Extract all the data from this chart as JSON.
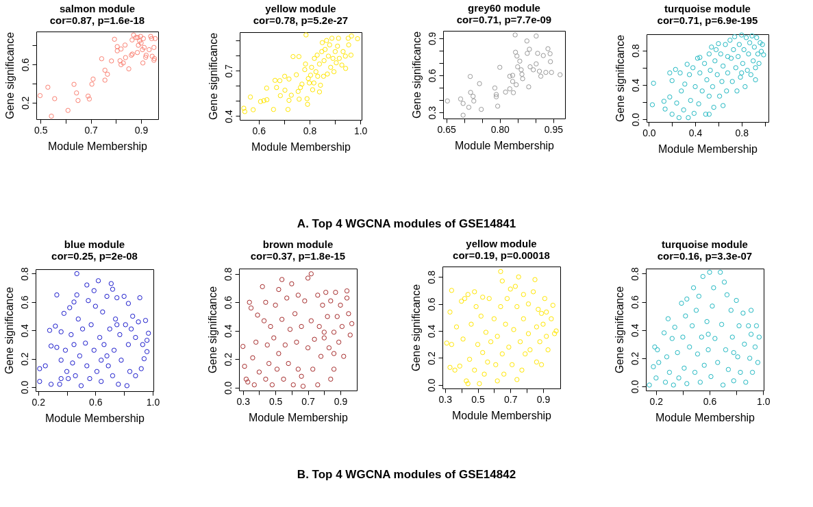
{
  "chart_data": [
    {
      "type": "scatter",
      "title": "salmon module",
      "subtitle": "cor=0.87, p=1.6e-18",
      "xlabel": "Module Membership",
      "ylabel": "Gene significance",
      "color": "#fa8072",
      "marker": "circle",
      "xlim": [
        0.483,
        0.968
      ],
      "ylim": [
        0.027,
        0.945
      ],
      "xticks": [
        0.5,
        {
          "value": 0.6,
          "label": null
        },
        0.7,
        {
          "value": 0.8,
          "label": null
        },
        0.9
      ],
      "yticks": [
        0.2,
        {
          "value": 0.4,
          "label": null
        },
        0.6,
        {
          "value": 0.8,
          "label": null
        }
      ],
      "x": [
        0.498,
        0.529,
        0.556,
        0.543,
        0.609,
        0.633,
        0.643,
        0.649,
        0.689,
        0.694,
        0.704,
        0.709,
        0.743,
        0.756,
        0.756,
        0.766,
        0.782,
        0.794,
        0.805,
        0.805,
        0.816,
        0.82,
        0.82,
        0.829,
        0.836,
        0.838,
        0.851,
        0.861,
        0.865,
        0.864,
        0.87,
        0.88,
        0.885,
        0.889,
        0.887,
        0.894,
        0.898,
        0.9,
        0.905,
        0.907,
        0.909,
        0.912,
        0.92,
        0.918,
        0.932,
        0.938,
        0.942,
        0.944,
        0.951,
        0.951,
        0.956,
        0.953
      ],
      "values": [
        0.274,
        0.362,
        0.242,
        0.059,
        0.119,
        0.392,
        0.302,
        0.223,
        0.269,
        0.239,
        0.394,
        0.447,
        0.66,
        0.54,
        0.436,
        0.498,
        0.637,
        0.864,
        0.787,
        0.743,
        0.639,
        0.762,
        0.598,
        0.616,
        0.803,
        0.672,
        0.554,
        0.697,
        0.709,
        0.857,
        0.908,
        0.882,
        0.725,
        0.801,
        0.882,
        0.847,
        0.894,
        0.824,
        0.755,
        0.616,
        0.871,
        0.778,
        0.697,
        0.676,
        0.755,
        0.894,
        0.871,
        0.686,
        0.778,
        0.644,
        0.871,
        0.662
      ]
    },
    {
      "type": "scatter",
      "title": "yellow module",
      "subtitle": "cor=0.78, p=5.2e-27",
      "xlabel": "Module Membership",
      "ylabel": "Gene significance",
      "color": "#ffe600",
      "marker": "circle",
      "xlim": [
        0.525,
        1.005
      ],
      "ylim": [
        0.375,
        0.954
      ],
      "xticks": [
        0.6,
        {
          "value": 0.7,
          "label": null
        },
        0.8,
        {
          "value": 0.9,
          "label": null
        },
        {
          "value": 1,
          "label": "1.0"
        }
      ],
      "yticks": [
        0.4,
        {
          "value": 0.5,
          "label": null
        },
        {
          "value": 0.6,
          "label": null
        },
        0.7,
        {
          "value": 0.8,
          "label": null
        },
        {
          "value": 0.9,
          "label": null
        }
      ],
      "x": [
        0.541,
        0.545,
        0.567,
        0.578,
        0.607,
        0.62,
        0.632,
        0.631,
        0.658,
        0.664,
        0.67,
        0.683,
        0.685,
        0.703,
        0.702,
        0.719,
        0.715,
        0.719,
        0.728,
        0.735,
        0.758,
        0.748,
        0.755,
        0.759,
        0.764,
        0.77,
        0.781,
        0.784,
        0.786,
        0.79,
        0.792,
        0.795,
        0.799,
        0.804,
        0.808,
        0.812,
        0.817,
        0.819,
        0.825,
        0.83,
        0.832,
        0.839,
        0.839,
        0.843,
        0.848,
        0.85,
        0.855,
        0.857,
        0.861,
        0.867,
        0.87,
        0.874,
        0.879,
        0.883,
        0.888,
        0.892,
        0.896,
        0.901,
        0.905,
        0.91,
        0.914,
        0.917,
        0.927,
        0.932,
        0.942,
        0.941,
        0.954,
        0.952,
        0.963,
        0.965,
        0.989
      ],
      "values": [
        0.452,
        0.43,
        0.526,
        0.442,
        0.496,
        0.502,
        0.508,
        0.585,
        0.444,
        0.636,
        0.589,
        0.634,
        0.535,
        0.571,
        0.663,
        0.645,
        0.444,
        0.504,
        0.538,
        0.793,
        0.793,
        0.673,
        0.563,
        0.512,
        0.589,
        0.611,
        0.707,
        0.744,
        0.936,
        0.515,
        0.478,
        0.648,
        0.619,
        0.67,
        0.722,
        0.574,
        0.619,
        0.781,
        0.693,
        0.803,
        0.663,
        0.744,
        0.56,
        0.604,
        0.826,
        0.885,
        0.663,
        0.766,
        0.84,
        0.899,
        0.678,
        0.796,
        0.87,
        0.722,
        0.914,
        0.781,
        0.693,
        0.826,
        0.752,
        0.862,
        0.914,
        0.781,
        0.737,
        0.826,
        0.715,
        0.796,
        0.87,
        0.914,
        0.803,
        0.929,
        0.911
      ]
    },
    {
      "type": "scatter",
      "title": "grey60 module",
      "subtitle": "cor=0.71, p=7.7e-09",
      "xlabel": "Module Membership",
      "ylabel": "Gene significance",
      "color": "#999999",
      "marker": "circle",
      "xlim": [
        0.641,
        0.983
      ],
      "ylim": [
        0.251,
        0.96
      ],
      "xticks": [
        0.65,
        {
          "value": 0.7,
          "label": null
        },
        {
          "value": 0.75,
          "label": null
        },
        {
          "value": 0.8,
          "label": "0.80"
        },
        {
          "value": 0.85,
          "label": null
        },
        {
          "value": 0.9,
          "label": null
        },
        0.95
      ],
      "yticks": [
        0.3,
        {
          "value": 0.4,
          "label": null
        },
        {
          "value": 0.5,
          "label": null
        },
        0.6,
        {
          "value": 0.7,
          "label": null
        },
        {
          "value": 0.8,
          "label": null
        },
        0.9
      ],
      "x": [
        0.653,
        0.69,
        0.697,
        0.697,
        0.713,
        0.717,
        0.718,
        0.725,
        0.727,
        0.743,
        0.748,
        0.786,
        0.79,
        0.79,
        0.794,
        0.8,
        0.816,
        0.828,
        0.828,
        0.836,
        0.836,
        0.838,
        0.843,
        0.844,
        0.846,
        0.848,
        0.85,
        0.856,
        0.86,
        0.862,
        0.864,
        0.876,
        0.877,
        0.883,
        0.881,
        0.885,
        0.894,
        0.902,
        0.902,
        0.906,
        0.911,
        0.915,
        0.922,
        0.929,
        0.935,
        0.941,
        0.942,
        0.945,
        0.969
      ],
      "values": [
        0.393,
        0.409,
        0.373,
        0.278,
        0.342,
        0.591,
        0.462,
        0.431,
        0.393,
        0.533,
        0.325,
        0.498,
        0.445,
        0.427,
        0.351,
        0.665,
        0.465,
        0.491,
        0.593,
        0.6,
        0.551,
        0.46,
        0.927,
        0.787,
        0.524,
        0.756,
        0.669,
        0.715,
        0.645,
        0.609,
        0.573,
        0.878,
        0.778,
        0.811,
        0.507,
        0.669,
        0.645,
        0.918,
        0.693,
        0.778,
        0.633,
        0.593,
        0.76,
        0.624,
        0.815,
        0.775,
        0.711,
        0.624,
        0.605
      ]
    },
    {
      "type": "scatter",
      "title": "turquoise module",
      "subtitle": "cor=0.71, p=6.9e-195",
      "xlabel": "Module Membership",
      "ylabel": "Gene significance",
      "color": "#22b8c2",
      "marker": "circle",
      "xlim": [
        -0.02,
        1.032
      ],
      "ylim": [
        -0.03,
        0.989
      ],
      "xticks": [
        {
          "value": 0,
          "label": "0.0"
        },
        {
          "value": 0.2,
          "label": null
        },
        0.4,
        {
          "value": 0.6,
          "label": null
        },
        0.8,
        {
          "value": 1,
          "label": null
        }
      ],
      "yticks": [
        {
          "value": 0,
          "label": "0.0"
        },
        {
          "value": 0.2,
          "label": null
        },
        0.4,
        {
          "value": 0.6,
          "label": null
        },
        0.8
      ],
      "annotations": [
        "A. Top 4 WGCNA modules of GSE14841"
      ],
      "x": [
        0.03,
        0.04,
        0.13,
        0.14,
        0.18,
        0.18,
        0.2,
        0.2,
        0.23,
        0.24,
        0.26,
        0.27,
        0.28,
        0.3,
        0.31,
        0.33,
        0.34,
        0.35,
        0.36,
        0.38,
        0.39,
        0.4,
        0.42,
        0.43,
        0.44,
        0.44,
        0.46,
        0.48,
        0.49,
        0.5,
        0.52,
        0.53,
        0.54,
        0.55,
        0.56,
        0.57,
        0.59,
        0.6,
        0.61,
        0.62,
        0.63,
        0.64,
        0.66,
        0.67,
        0.68,
        0.7,
        0.71,
        0.72,
        0.73,
        0.74,
        0.75,
        0.76,
        0.77,
        0.78,
        0.79,
        0.8,
        0.81,
        0.82,
        0.83,
        0.84,
        0.85,
        0.86,
        0.87,
        0.88,
        0.89,
        0.9,
        0.91,
        0.92,
        0.93,
        0.94,
        0.95,
        0.96,
        0.97,
        0.98,
        0.99,
        0.52,
        0.58,
        0.68,
        0.8,
        0.92,
        0.64,
        0.52
      ],
      "values": [
        0.17,
        0.42,
        0.21,
        0.12,
        0.26,
        0.54,
        0.45,
        0.06,
        0.58,
        0.19,
        0.02,
        0.54,
        0.33,
        0.11,
        0.41,
        0.64,
        0.02,
        0.52,
        0.22,
        0.6,
        0.07,
        0.38,
        0.71,
        0.18,
        0.54,
        0.72,
        0.33,
        0.65,
        0.06,
        0.46,
        0.27,
        0.57,
        0.84,
        0.38,
        0.14,
        0.68,
        0.52,
        0.88,
        0.27,
        0.76,
        0.44,
        0.62,
        0.87,
        0.33,
        0.54,
        0.92,
        0.71,
        0.44,
        0.81,
        0.96,
        0.6,
        0.33,
        0.73,
        0.87,
        0.49,
        0.98,
        0.65,
        0.81,
        0.38,
        0.95,
        0.57,
        0.76,
        0.89,
        0.52,
        0.97,
        0.68,
        0.84,
        0.6,
        0.95,
        0.76,
        0.65,
        0.89,
        0.79,
        0.87,
        0.75,
        0.76,
        0.81,
        0.73,
        0.54,
        0.46,
        0.16,
        0.06
      ]
    },
    {
      "type": "scatter",
      "title": "blue module",
      "subtitle": "cor=0.25, p=2e-08",
      "xlabel": "Module Membership",
      "ylabel": "Gene significance",
      "color": "#1a1acc",
      "marker": "circle",
      "xlim": [
        0.182,
        1.005
      ],
      "ylim": [
        -0.029,
        0.831
      ],
      "xticks": [
        0.2,
        {
          "value": 0.4,
          "label": null
        },
        0.6,
        {
          "value": 0.8,
          "label": null
        },
        {
          "value": 1,
          "label": "1.0"
        }
      ],
      "yticks": [
        {
          "value": 0,
          "label": "0.0"
        },
        0.2,
        0.4,
        0.6,
        0.8
      ],
      "x": [
        0.21,
        0.21,
        0.25,
        0.28,
        0.29,
        0.29,
        0.33,
        0.32,
        0.33,
        0.35,
        0.36,
        0.36,
        0.36,
        0.38,
        0.39,
        0.4,
        0.41,
        0.42,
        0.43,
        0.44,
        0.45,
        0.45,
        0.46,
        0.47,
        0.47,
        0.48,
        0.49,
        0.5,
        0.51,
        0.53,
        0.54,
        0.54,
        0.55,
        0.56,
        0.57,
        0.59,
        0.6,
        0.61,
        0.62,
        0.63,
        0.64,
        0.64,
        0.65,
        0.66,
        0.68,
        0.69,
        0.7,
        0.71,
        0.72,
        0.72,
        0.73,
        0.74,
        0.75,
        0.76,
        0.77,
        0.78,
        0.8,
        0.81,
        0.82,
        0.83,
        0.83,
        0.84,
        0.85,
        0.86,
        0.88,
        0.88,
        0.9,
        0.91,
        0.92,
        0.93,
        0.94,
        0.95,
        0.96,
        0.96,
        0.97,
        0.75,
        0.68,
        0.59
      ],
      "values": [
        0.04,
        0.13,
        0.15,
        0.4,
        0.29,
        0.02,
        0.65,
        0.43,
        0.28,
        0.02,
        0.39,
        0.19,
        0.06,
        0.52,
        0.26,
        0.11,
        0.06,
        0.56,
        0.37,
        0.17,
        0.6,
        0.3,
        0.08,
        0.8,
        0.65,
        0.48,
        0.22,
        0.01,
        0.41,
        0.31,
        0.72,
        0.15,
        0.61,
        0.06,
        0.44,
        0.26,
        0.57,
        0.11,
        0.75,
        0.35,
        0.19,
        0.04,
        0.53,
        0.3,
        0.64,
        0.15,
        0.41,
        0.73,
        0.08,
        0.69,
        0.26,
        0.48,
        0.63,
        0.02,
        0.37,
        0.19,
        0.64,
        0.44,
        0.01,
        0.3,
        0.59,
        0.11,
        0.41,
        0.5,
        0.08,
        0.35,
        0.46,
        0.63,
        0.13,
        0.3,
        0.2,
        0.47,
        0.33,
        0.25,
        0.38,
        0.44,
        0.22,
        0.68
      ]
    },
    {
      "type": "scatter",
      "title": "brown module",
      "subtitle": "cor=0.37, p=1.8e-15",
      "xlabel": "Module Membership",
      "ylabel": "Gene significance",
      "color": "#a52a2a",
      "marker": "circle",
      "xlim": [
        0.276,
        1.001
      ],
      "ylim": [
        -0.02,
        0.837
      ],
      "xticks": [
        0.3,
        {
          "value": 0.4,
          "label": null
        },
        0.5,
        {
          "value": 0.6,
          "label": null
        },
        0.7,
        {
          "value": 0.8,
          "label": null
        },
        0.9
      ],
      "yticks": [
        {
          "value": 0,
          "label": "0.0"
        },
        0.2,
        0.4,
        0.6,
        0.8
      ],
      "x": [
        0.3,
        0.31,
        0.32,
        0.33,
        0.34,
        0.35,
        0.36,
        0.37,
        0.38,
        0.39,
        0.4,
        0.42,
        0.43,
        0.44,
        0.44,
        0.45,
        0.46,
        0.47,
        0.48,
        0.49,
        0.5,
        0.51,
        0.52,
        0.52,
        0.54,
        0.54,
        0.55,
        0.56,
        0.57,
        0.58,
        0.59,
        0.6,
        0.61,
        0.62,
        0.63,
        0.64,
        0.64,
        0.66,
        0.66,
        0.67,
        0.68,
        0.7,
        0.7,
        0.72,
        0.72,
        0.73,
        0.74,
        0.76,
        0.76,
        0.77,
        0.78,
        0.79,
        0.8,
        0.81,
        0.82,
        0.83,
        0.84,
        0.84,
        0.86,
        0.86,
        0.87,
        0.88,
        0.89,
        0.9,
        0.91,
        0.92,
        0.94,
        0.95,
        0.96,
        0.97,
        0.94,
        0.8,
        0.86
      ],
      "values": [
        0.29,
        0.15,
        0.06,
        0.04,
        0.6,
        0.56,
        0.21,
        0.02,
        0.32,
        0.51,
        0.11,
        0.71,
        0.47,
        0.06,
        0.6,
        0.3,
        0.17,
        0.43,
        0.02,
        0.35,
        0.58,
        0.13,
        0.69,
        0.24,
        0.48,
        0.76,
        0.06,
        0.3,
        0.63,
        0.17,
        0.41,
        0.73,
        0.02,
        0.52,
        0.32,
        0.13,
        0.65,
        0.43,
        0.08,
        0.01,
        0.61,
        0.28,
        0.77,
        0.8,
        0.47,
        0.13,
        0.34,
        0.65,
        0.02,
        0.43,
        0.22,
        0.58,
        0.35,
        0.67,
        0.5,
        0.28,
        0.06,
        0.61,
        0.39,
        0.13,
        0.67,
        0.5,
        0.32,
        0.58,
        0.43,
        0.22,
        0.63,
        0.52,
        0.37,
        0.45,
        0.68,
        0.39,
        0.24
      ]
    },
    {
      "type": "scatter",
      "title": "yellow module",
      "subtitle": "cor=0.19, p=0.00018",
      "xlabel": "Module Membership",
      "ylabel": "Gene significance",
      "color": "#ffe600",
      "marker": "circle",
      "xlim": [
        0.284,
        1.005
      ],
      "ylim": [
        -0.026,
        0.877
      ],
      "xticks": [
        0.3,
        {
          "value": 0.4,
          "label": null
        },
        0.5,
        {
          "value": 0.6,
          "label": null
        },
        0.7,
        {
          "value": 0.8,
          "label": null
        },
        0.9
      ],
      "yticks": [
        {
          "value": 0,
          "label": "0.0"
        },
        0.2,
        0.4,
        0.6,
        0.8
      ],
      "x": [
        0.31,
        0.33,
        0.33,
        0.34,
        0.34,
        0.36,
        0.37,
        0.39,
        0.4,
        0.41,
        0.42,
        0.43,
        0.44,
        0.44,
        0.45,
        0.46,
        0.48,
        0.48,
        0.49,
        0.5,
        0.51,
        0.52,
        0.53,
        0.53,
        0.54,
        0.55,
        0.56,
        0.57,
        0.58,
        0.6,
        0.61,
        0.62,
        0.62,
        0.64,
        0.64,
        0.65,
        0.65,
        0.66,
        0.67,
        0.68,
        0.69,
        0.7,
        0.71,
        0.72,
        0.73,
        0.74,
        0.74,
        0.75,
        0.76,
        0.77,
        0.78,
        0.78,
        0.79,
        0.81,
        0.81,
        0.82,
        0.84,
        0.85,
        0.86,
        0.86,
        0.87,
        0.88,
        0.89,
        0.9,
        0.91,
        0.92,
        0.92,
        0.93,
        0.95,
        0.96,
        0.97,
        0.98,
        0.89
      ],
      "values": [
        0.31,
        0.54,
        0.13,
        0.7,
        0.3,
        0.11,
        0.43,
        0.14,
        0.62,
        0.34,
        0.64,
        0.03,
        0.67,
        0.01,
        0.19,
        0.45,
        0.69,
        0.11,
        0.58,
        0.3,
        0.01,
        0.51,
        0.24,
        0.65,
        0.08,
        0.39,
        0.17,
        0.64,
        0.32,
        0.49,
        0.15,
        0.03,
        0.36,
        0.84,
        0.58,
        0.77,
        0.23,
        0.08,
        0.45,
        0.64,
        0.28,
        0.71,
        0.15,
        0.41,
        0.73,
        0.04,
        0.58,
        0.8,
        0.32,
        0.11,
        0.49,
        0.67,
        0.23,
        0.38,
        0.6,
        0.26,
        0.69,
        0.78,
        0.43,
        0.17,
        0.56,
        0.32,
        0.15,
        0.45,
        0.64,
        0.36,
        0.54,
        0.26,
        0.49,
        0.59,
        0.38,
        0.4,
        0.53
      ]
    },
    {
      "type": "scatter",
      "title": "turquoise module",
      "subtitle": "cor=0.16, p=3.3e-07",
      "xlabel": "Module Membership",
      "ylabel": "Gene significance",
      "color": "#22b8c2",
      "marker": "circle",
      "xlim": [
        0.124,
        1.004
      ],
      "ylim": [
        -0.029,
        0.836
      ],
      "xticks": [
        0.2,
        {
          "value": 0.4,
          "label": null
        },
        0.6,
        {
          "value": 0.8,
          "label": null
        },
        {
          "value": 1,
          "label": "1.0"
        }
      ],
      "yticks": [
        {
          "value": 0,
          "label": "0.0"
        },
        0.2,
        0.4,
        0.6,
        0.8
      ],
      "annotations": [
        "B. Top 4 WGCNA modules of GSE14842"
      ],
      "x": [
        0.15,
        0.18,
        0.19,
        0.2,
        0.21,
        0.22,
        0.26,
        0.27,
        0.28,
        0.29,
        0.3,
        0.32,
        0.33,
        0.34,
        0.36,
        0.37,
        0.39,
        0.4,
        0.41,
        0.42,
        0.43,
        0.43,
        0.45,
        0.47,
        0.48,
        0.49,
        0.5,
        0.51,
        0.52,
        0.53,
        0.54,
        0.55,
        0.56,
        0.58,
        0.59,
        0.6,
        0.61,
        0.62,
        0.63,
        0.64,
        0.66,
        0.68,
        0.69,
        0.7,
        0.71,
        0.72,
        0.73,
        0.74,
        0.76,
        0.77,
        0.78,
        0.8,
        0.81,
        0.82,
        0.83,
        0.85,
        0.86,
        0.87,
        0.89,
        0.9,
        0.91,
        0.92,
        0.94,
        0.95,
        0.96,
        0.97,
        0.91,
        0.59,
        0.78
      ],
      "values": [
        0.01,
        0.14,
        0.28,
        0.06,
        0.26,
        0.17,
        0.38,
        0.03,
        0.21,
        0.48,
        0.1,
        0.34,
        0.01,
        0.42,
        0.24,
        0.06,
        0.59,
        0.35,
        0.13,
        0.5,
        0.62,
        0.02,
        0.28,
        0.43,
        0.7,
        0.1,
        0.54,
        0.23,
        0.64,
        0.03,
        0.35,
        0.78,
        0.15,
        0.46,
        0.26,
        0.81,
        0.07,
        0.57,
        0.7,
        0.34,
        0.17,
        0.81,
        0.44,
        0.01,
        0.74,
        0.26,
        0.65,
        0.12,
        0.54,
        0.35,
        0.04,
        0.61,
        0.21,
        0.43,
        0.1,
        0.52,
        0.3,
        0.03,
        0.43,
        0.2,
        0.37,
        0.1,
        0.28,
        0.43,
        0.17,
        0.35,
        0.54,
        0.37,
        0.24
      ]
    }
  ]
}
